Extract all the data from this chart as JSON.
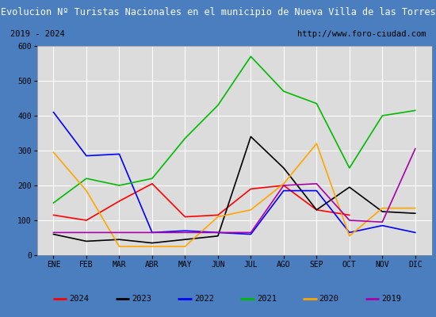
{
  "title": "Evolucion Nº Turistas Nacionales en el municipio de Nueva Villa de las Torres",
  "subtitle_left": "2019 - 2024",
  "subtitle_right": "http://www.foro-ciudad.com",
  "months": [
    "ENE",
    "FEB",
    "MAR",
    "ABR",
    "MAY",
    "JUN",
    "JUL",
    "AGO",
    "SEP",
    "OCT",
    "NOV",
    "DIC"
  ],
  "series": {
    "2024": [
      115,
      100,
      155,
      205,
      110,
      115,
      190,
      200,
      130,
      115,
      null,
      null
    ],
    "2023": [
      60,
      40,
      45,
      35,
      45,
      55,
      340,
      250,
      130,
      195,
      125,
      120
    ],
    "2022": [
      410,
      285,
      290,
      65,
      70,
      65,
      60,
      185,
      185,
      65,
      85,
      65
    ],
    "2021": [
      150,
      220,
      200,
      220,
      335,
      430,
      570,
      470,
      435,
      250,
      400,
      415
    ],
    "2020": [
      295,
      185,
      25,
      25,
      25,
      110,
      130,
      205,
      320,
      55,
      135,
      135
    ],
    "2019": [
      65,
      65,
      65,
      65,
      65,
      65,
      65,
      200,
      205,
      100,
      95,
      305
    ]
  },
  "colors": {
    "2024": "#ff0000",
    "2023": "#000000",
    "2022": "#0000ff",
    "2021": "#00bb00",
    "2020": "#ffa500",
    "2019": "#aa00aa"
  },
  "ylim": [
    0,
    600
  ],
  "yticks": [
    0,
    100,
    200,
    300,
    400,
    500,
    600
  ],
  "title_bg": "#4a7ebf",
  "title_color": "#ffffff",
  "plot_bg": "#dcdcdc",
  "grid_color": "#ffffff",
  "border_color": "#4a7ebf",
  "subtitle_bg": "#f2f2f2",
  "legend_bg": "#ffffff"
}
